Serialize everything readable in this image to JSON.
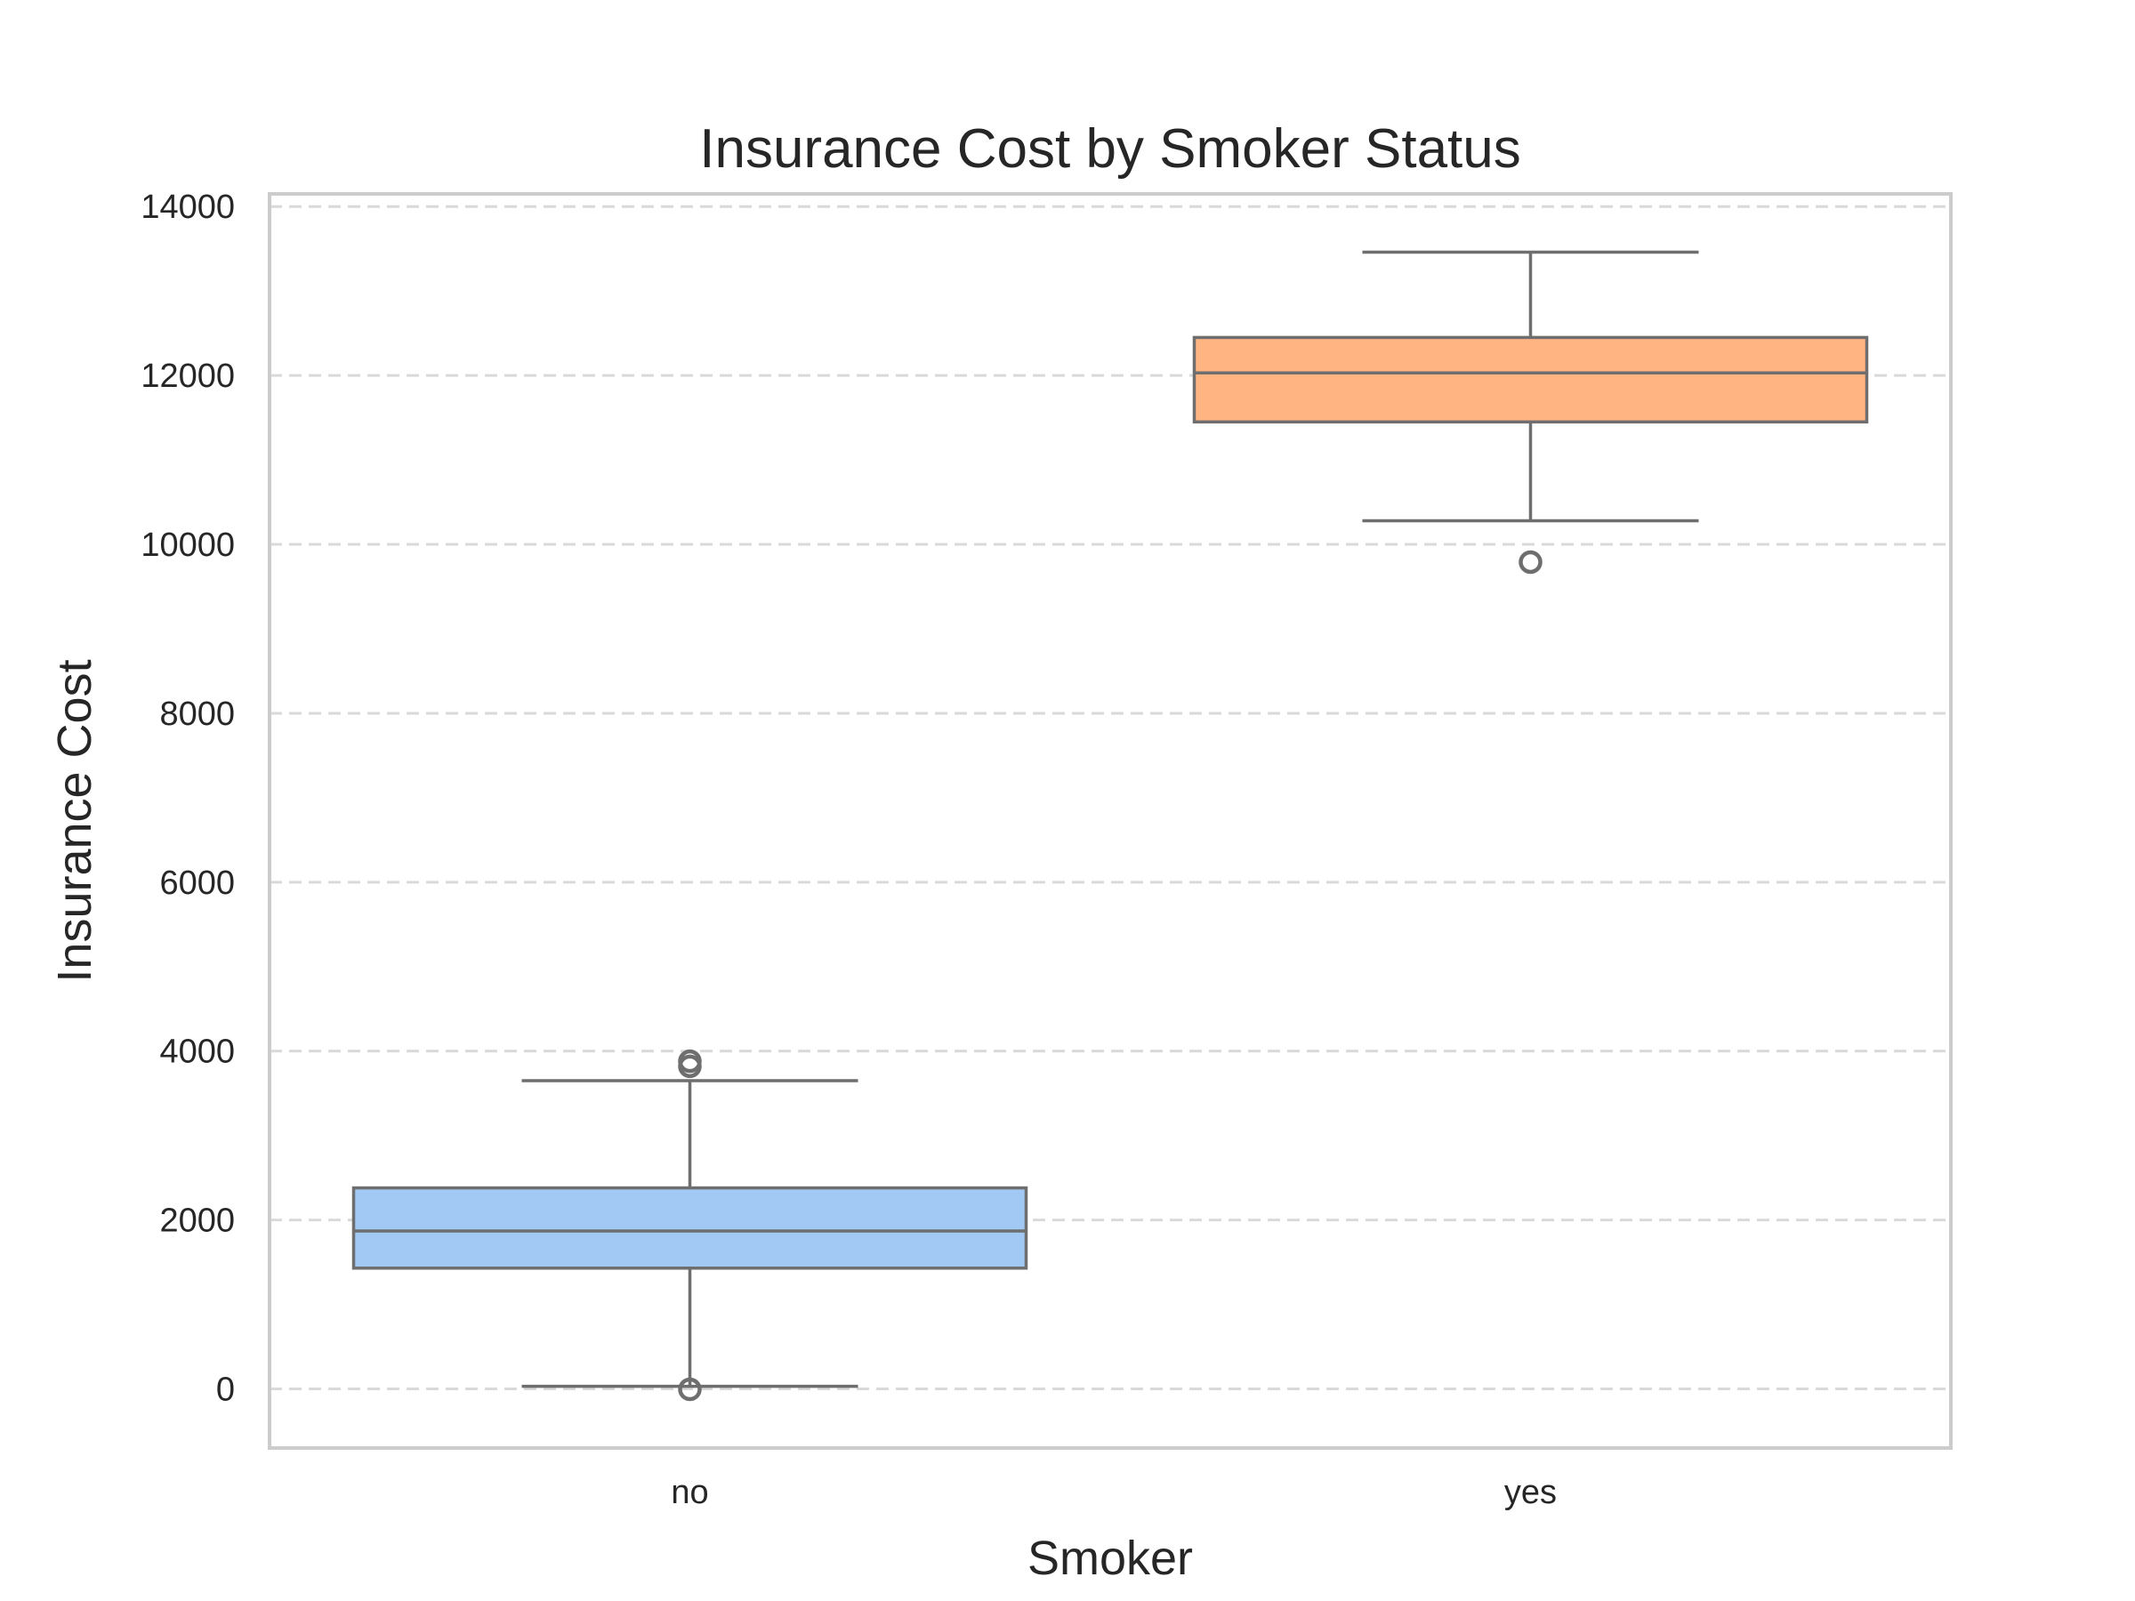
{
  "chart_data": {
    "type": "boxplot",
    "title": "Insurance Cost by Smoker Status",
    "xlabel": "Smoker",
    "ylabel": "Insurance Cost",
    "categories": [
      "no",
      "yes"
    ],
    "ylim": [
      -700,
      14150
    ],
    "yticks": [
      0,
      2000,
      4000,
      6000,
      8000,
      10000,
      12000,
      14000
    ],
    "grid": "horizontal dashed",
    "boxes": [
      {
        "category": "no",
        "color": "#a1c9f4",
        "whisker_low": 30,
        "q1": 1430,
        "median": 1870,
        "q3": 2380,
        "whisker_high": 3650,
        "outliers": [
          -5,
          3820,
          3880
        ]
      },
      {
        "category": "yes",
        "color": "#ffb482",
        "whisker_low": 10280,
        "q1": 11450,
        "median": 12030,
        "q3": 12450,
        "whisker_high": 13460,
        "outliers": [
          9790
        ]
      }
    ]
  }
}
